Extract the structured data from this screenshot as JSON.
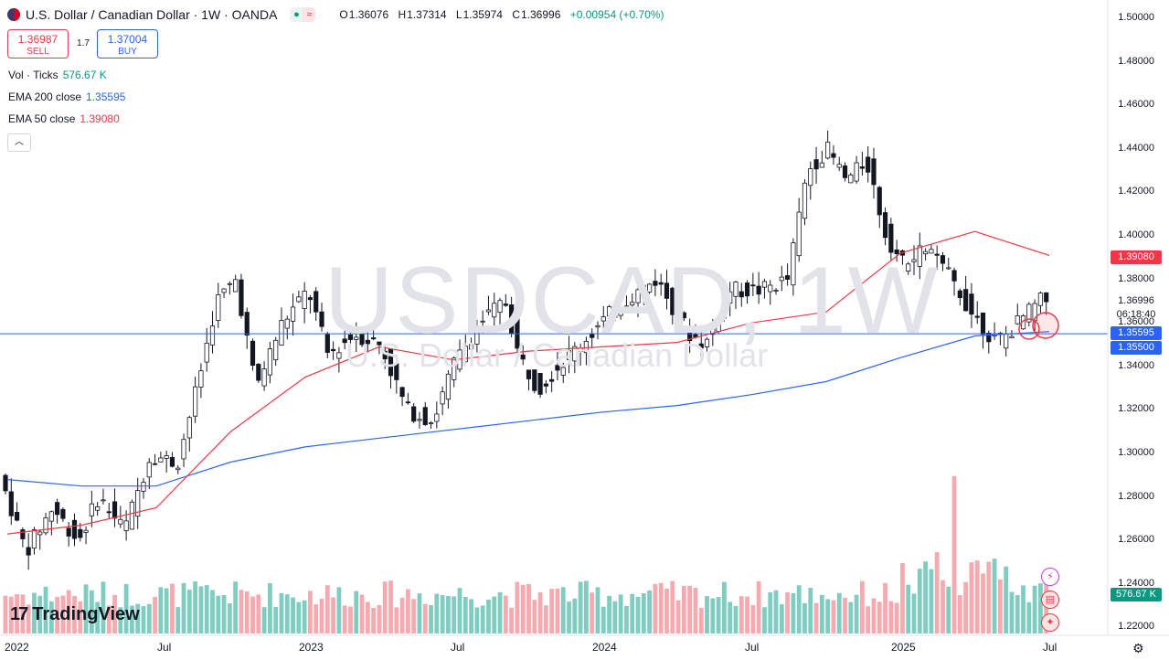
{
  "header": {
    "title": "U.S. Dollar / Canadian Dollar · 1W · OANDA",
    "open_label": "O",
    "open": "1.36076",
    "high_label": "H",
    "high": "1.37314",
    "low_label": "L",
    "low": "1.35974",
    "close_label": "C",
    "close": "1.36996",
    "change": "+0.00954 (+0.70%)"
  },
  "trade": {
    "sell_price": "1.36987",
    "sell_label": "SELL",
    "spread": "1.7",
    "buy_price": "1.37004",
    "buy_label": "BUY"
  },
  "indicators": [
    {
      "label": "Vol · Ticks",
      "value": "576.67 K",
      "color": "#089981"
    },
    {
      "label": "EMA 200 close",
      "value": "1.35595",
      "color": "#2962ff"
    },
    {
      "label": "EMA 50 close",
      "value": "1.39080",
      "color": "#f23645"
    }
  ],
  "watermark": {
    "symbol": "USDCAD, 1W",
    "name": "U.S. Dollar / Canadian Dollar"
  },
  "branding": "TradingView",
  "price_tags": {
    "ema50": "1.39080",
    "last": "1.36996",
    "countdown": "06:18:40",
    "ema200": "1.35595",
    "hline": "1.35500",
    "volume": "576.67 K"
  },
  "icons": [
    "flag-icon",
    "dot-icon",
    "wave-icon",
    "chevron-up-icon",
    "lightning-icon",
    "us-flag-icon",
    "canada-flag-icon",
    "gear-icon"
  ],
  "colors": {
    "up": "#089981",
    "down": "#131722",
    "ema50": "#f23645",
    "ema200": "#2962ff",
    "hline": "#2962ff",
    "vol_up": "#7fcdc0",
    "vol_down": "#f6a9ae"
  },
  "chart_data": {
    "type": "candlestick",
    "title": "U.S. Dollar / Canadian Dollar · 1W · OANDA",
    "y_ticks": [
      "1.50000",
      "1.48000",
      "1.46000",
      "1.44000",
      "1.42000",
      "1.40000",
      "1.38000",
      "1.36000",
      "1.34000",
      "1.32000",
      "1.30000",
      "1.28000",
      "1.26000",
      "1.24000",
      "1.22000"
    ],
    "x_ticks": [
      "2022",
      "Jul",
      "2023",
      "Jul",
      "2024",
      "Jul",
      "2025",
      "Jul"
    ],
    "ylim": [
      1.215,
      1.505
    ],
    "horizontal_line": 1.355,
    "series": [
      {
        "name": "EMA 200 close",
        "color": "#2962ff",
        "x": [
          "2022-01",
          "2022-04",
          "2022-07",
          "2022-10",
          "2023-01",
          "2023-04",
          "2023-07",
          "2023-10",
          "2024-01",
          "2024-04",
          "2024-07",
          "2024-10",
          "2025-01",
          "2025-04",
          "2025-07"
        ],
        "values": [
          1.288,
          1.285,
          1.285,
          1.296,
          1.303,
          1.307,
          1.311,
          1.315,
          1.319,
          1.322,
          1.327,
          1.333,
          1.344,
          1.354,
          1.356
        ]
      },
      {
        "name": "EMA 50 close",
        "color": "#f23645",
        "x": [
          "2022-01",
          "2022-04",
          "2022-07",
          "2022-10",
          "2023-01",
          "2023-04",
          "2023-07",
          "2023-10",
          "2024-01",
          "2024-04",
          "2024-07",
          "2024-10",
          "2025-01",
          "2025-04",
          "2025-07"
        ],
        "values": [
          1.263,
          1.267,
          1.275,
          1.31,
          1.335,
          1.349,
          1.343,
          1.347,
          1.349,
          1.351,
          1.36,
          1.365,
          1.392,
          1.402,
          1.391
        ]
      }
    ]
  }
}
